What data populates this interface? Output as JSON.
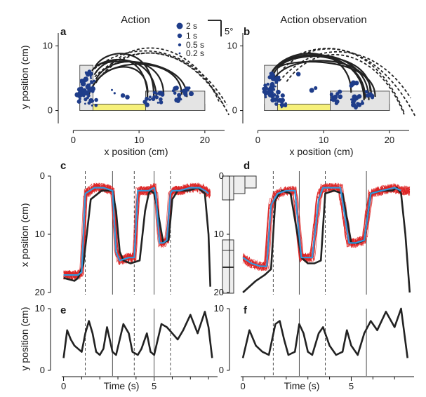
{
  "figure": {
    "titles": {
      "left": "Action",
      "right": "Action observation"
    },
    "scale_bar_label": "5°",
    "panel_labels": [
      "a",
      "b",
      "c",
      "d",
      "e",
      "f"
    ],
    "legend": {
      "items": [
        "2 s",
        "1 s",
        "0.5 s",
        "0.2 s"
      ]
    },
    "axis_labels": {
      "xpos": "x position (cm)",
      "ypos": "y position (cm)",
      "time": "Time (s)"
    }
  },
  "chart_data": [
    {
      "panel": "a",
      "type": "scatter",
      "xlabel": "x position (cm)",
      "ylabel": "y position (cm)",
      "xlim": [
        -1,
        23
      ],
      "ylim": [
        -2,
        12
      ],
      "xticks": [
        "0",
        "10",
        "20"
      ],
      "yticks": [
        "0",
        "10"
      ],
      "legend": {
        "position": "top-right",
        "entries": [
          "2 s",
          "1 s",
          "0.5 s",
          "0.2 s"
        ]
      },
      "fixations": [
        [
          2,
          3.5,
          3
        ],
        [
          2.5,
          5,
          2
        ],
        [
          1.5,
          2,
          2
        ],
        [
          3,
          1.2,
          1
        ],
        [
          13,
          2,
          2
        ],
        [
          16,
          2.5,
          2
        ],
        [
          17.5,
          2.8,
          1
        ],
        [
          11.5,
          1.5,
          1
        ],
        [
          6,
          2.8,
          0.5
        ],
        [
          8,
          2.3,
          0.5
        ]
      ],
      "shapes": {
        "stack_region": {
          "x": [
            1,
            3
          ],
          "y": [
            0,
            7
          ]
        },
        "target_region": {
          "x": [
            11,
            20
          ],
          "y": [
            0,
            3
          ]
        },
        "table_strip": {
          "x": [
            1,
            20
          ],
          "y": [
            0,
            1
          ]
        }
      }
    },
    {
      "panel": "b",
      "type": "scatter",
      "xlabel": "x position (cm)",
      "ylabel": "y position (cm)",
      "xlim": [
        -1,
        23
      ],
      "ylim": [
        -2,
        12
      ],
      "xticks": [
        "0",
        "10",
        "20"
      ],
      "yticks": [
        "0",
        "10"
      ],
      "fixations": [
        [
          2,
          3,
          3
        ],
        [
          2.5,
          5,
          2
        ],
        [
          3.5,
          1.5,
          2
        ],
        [
          12,
          2,
          2
        ],
        [
          15,
          1.5,
          2
        ],
        [
          14.5,
          3.8,
          1
        ],
        [
          17,
          2.5,
          1
        ],
        [
          6,
          6,
          0.5
        ],
        [
          8.5,
          3.5,
          0.5
        ]
      ],
      "shapes": {
        "stack_region": {
          "x": [
            1,
            3
          ],
          "y": [
            0,
            7
          ]
        },
        "target_region": {
          "x": [
            11,
            20
          ],
          "y": [
            0,
            3
          ]
        },
        "table_strip": {
          "x": [
            1,
            20
          ],
          "y": [
            0,
            1
          ]
        }
      }
    },
    {
      "panel": "c",
      "type": "line",
      "ylabel": "x position (cm)",
      "ylim": [
        0,
        20
      ],
      "yticks": [
        "0",
        "10",
        "20"
      ],
      "series": [
        {
          "role": "hand",
          "color": "#222222",
          "x": [
            0,
            0.6,
            0.8,
            1.1,
            1.5,
            2.1,
            2.7,
            2.9,
            3.1,
            3.3,
            3.7,
            4.2,
            4.5,
            4.7,
            4.8,
            5.0,
            5.2,
            5.5,
            5.8,
            6.0,
            6.3,
            6.9,
            7.4,
            7.8,
            8.0,
            8.1
          ],
          "y": [
            17.5,
            18,
            17.5,
            15,
            4,
            2.5,
            2.5,
            6,
            13,
            14.5,
            15,
            14.5,
            6,
            3,
            2.5,
            3,
            6,
            11.5,
            11,
            4,
            2.5,
            2.5,
            2,
            3,
            10,
            19
          ]
        },
        {
          "role": "eye",
          "color": "#3399dd",
          "x": [
            0,
            0.8,
            1.0,
            1.2,
            1.7,
            2.2,
            2.7,
            2.9,
            3.1,
            3.6,
            3.9,
            4.1,
            4.4,
            4.7,
            5.0,
            5.1,
            5.3,
            5.5,
            5.7,
            5.9,
            6.0,
            6.4,
            7.0,
            7.5,
            7.8,
            8.0
          ],
          "y": [
            17,
            17,
            16.5,
            3,
            2,
            2,
            2.5,
            13,
            14.5,
            14,
            14,
            2.5,
            2.5,
            2.5,
            2,
            3.5,
            11.5,
            11.5,
            11,
            3,
            2.5,
            2.5,
            2,
            2,
            2.5,
            3
          ]
        }
      ],
      "vlines": [
        1.2,
        2.7,
        3.9,
        5.0,
        5.9
      ]
    },
    {
      "panel": "d",
      "type": "line",
      "ylabel": "x position (cm)",
      "ylim": [
        0,
        20
      ],
      "yticks": [
        "0",
        "10",
        "20"
      ],
      "series": [
        {
          "role": "hand",
          "color": "#222222",
          "x": [
            0,
            0.6,
            1.0,
            1.3,
            1.5,
            1.8,
            2.2,
            2.7,
            3.0,
            3.3,
            3.6,
            3.8,
            4.2,
            4.6,
            5.0,
            5.3,
            5.6,
            5.9,
            6.4,
            6.9,
            7.1,
            7.3,
            7.5,
            7.7
          ],
          "y": [
            20,
            18,
            17,
            16,
            4,
            2.5,
            3,
            14,
            15,
            15,
            14.5,
            3,
            2.5,
            3,
            11.5,
            11.5,
            11,
            3,
            2.5,
            2.5,
            2,
            3,
            10,
            20
          ]
        },
        {
          "role": "eye",
          "color": "#3399dd",
          "x": [
            0,
            0.4,
            0.8,
            1.1,
            1.3,
            1.6,
            2.0,
            2.4,
            2.7,
            3.0,
            3.2,
            3.5,
            3.7,
            4.1,
            4.5,
            4.9,
            5.2,
            5.6,
            5.9,
            6.4,
            7.0,
            7.3
          ],
          "y": [
            14,
            15,
            15.5,
            15.5,
            5,
            3,
            2.5,
            2.5,
            14,
            14,
            14,
            4,
            2,
            2,
            2,
            11.5,
            11.5,
            11,
            3,
            2.5,
            2,
            2.5
          ]
        }
      ],
      "vlines": [
        1.4,
        2.6,
        3.8,
        5.7
      ]
    },
    {
      "panel": "e",
      "type": "line",
      "xlabel": "Time (s)",
      "ylabel": "y position (cm)",
      "xlim": [
        -0.1,
        8.5
      ],
      "ylim": [
        0,
        10
      ],
      "xticks": [
        "0",
        "5"
      ],
      "yticks": [
        "0",
        "10"
      ],
      "series": [
        {
          "role": "hand",
          "color": "#222222",
          "x": [
            0,
            0.2,
            0.4,
            0.6,
            0.8,
            1.0,
            1.2,
            1.4,
            1.6,
            1.8,
            2.0,
            2.2,
            2.4,
            2.7,
            2.9,
            3.1,
            3.3,
            3.6,
            3.8,
            4.1,
            4.3,
            4.6,
            4.8,
            5.0,
            5.2,
            5.4,
            5.7,
            6.0,
            6.3,
            6.6,
            7.0,
            7.4,
            7.8,
            8.0,
            8.2
          ],
          "y": [
            2,
            6.5,
            5,
            4,
            3.5,
            3,
            6,
            8,
            6,
            3,
            2.5,
            3.5,
            7,
            3,
            2.5,
            5,
            7.5,
            6,
            3,
            2.5,
            3.5,
            6,
            3,
            2.5,
            5,
            7.5,
            7,
            6,
            5,
            6.5,
            9,
            6,
            9.5,
            7,
            2
          ]
        }
      ],
      "vlines": [
        1.2,
        2.7,
        3.9,
        5.0,
        5.9
      ]
    },
    {
      "panel": "f",
      "type": "line",
      "xlabel": "Time (s)",
      "ylabel": "y position (cm)",
      "xlim": [
        -0.1,
        7.9
      ],
      "ylim": [
        0,
        10
      ],
      "xticks": [
        "0",
        "5"
      ],
      "yticks": [
        "0",
        "10"
      ],
      "series": [
        {
          "role": "hand",
          "color": "#222222",
          "x": [
            0,
            0.3,
            0.6,
            0.9,
            1.2,
            1.5,
            1.7,
            1.9,
            2.1,
            2.4,
            2.6,
            2.8,
            3.0,
            3.2,
            3.5,
            3.7,
            4.0,
            4.3,
            4.6,
            4.8,
            5.0,
            5.3,
            5.6,
            5.9,
            6.2,
            6.6,
            7.0,
            7.3,
            7.6
          ],
          "y": [
            2,
            6.5,
            4,
            3,
            2.5,
            7.5,
            8,
            5,
            2.5,
            3,
            7.5,
            6,
            3,
            2.5,
            6,
            7,
            4,
            2.5,
            3,
            6.5,
            4,
            2.5,
            6,
            8,
            6.5,
            9.5,
            7,
            10,
            2
          ]
        }
      ],
      "vlines": [
        1.4,
        2.6,
        3.8,
        5.7
      ]
    }
  ]
}
